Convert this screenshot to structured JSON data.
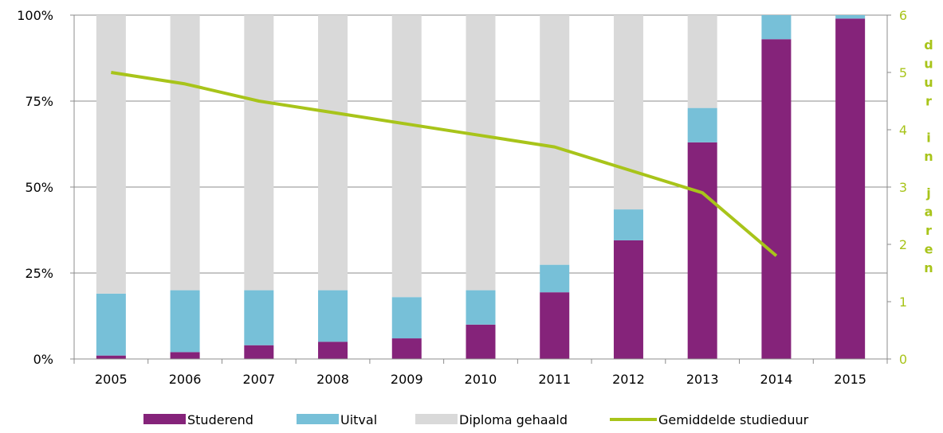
{
  "chart_data": {
    "type": "bar",
    "stacked": true,
    "categories": [
      "2005",
      "2006",
      "2007",
      "2008",
      "2009",
      "2010",
      "2011",
      "2012",
      "2013",
      "2014",
      "2015"
    ],
    "series": [
      {
        "name": "Studerend",
        "color": "#85237a",
        "values": [
          1,
          2,
          4,
          5,
          6,
          10,
          19.4,
          34.5,
          63,
          93,
          99
        ]
      },
      {
        "name": "Uitval",
        "color": "#77c0d8",
        "values": [
          18,
          18,
          16,
          15,
          12,
          10,
          8,
          9,
          10,
          7,
          1
        ]
      },
      {
        "name": "Diploma gehaald",
        "color": "#d9d9d9",
        "values": [
          81,
          80,
          80,
          80,
          82,
          80,
          72.6,
          56.5,
          27,
          0,
          0
        ]
      }
    ],
    "line_series": {
      "name": "Gemiddelde studieduur",
      "color": "#a8c41a",
      "axis": "right",
      "values": [
        5.0,
        4.8,
        4.5,
        4.3,
        4.1,
        3.9,
        3.7,
        3.3,
        2.9,
        1.8,
        null
      ]
    },
    "y_left": {
      "ylim": [
        0,
        100
      ],
      "ticks": [
        "0%",
        "25%",
        "50%",
        "75%",
        "100%"
      ]
    },
    "y_right": {
      "ylim": [
        0,
        6
      ],
      "ticks": [
        "0",
        "1",
        "2",
        "3",
        "4",
        "5",
        "6"
      ],
      "label": "duur in jaren",
      "color": "#a8c41a"
    },
    "grid": true,
    "legend_position": "bottom"
  }
}
